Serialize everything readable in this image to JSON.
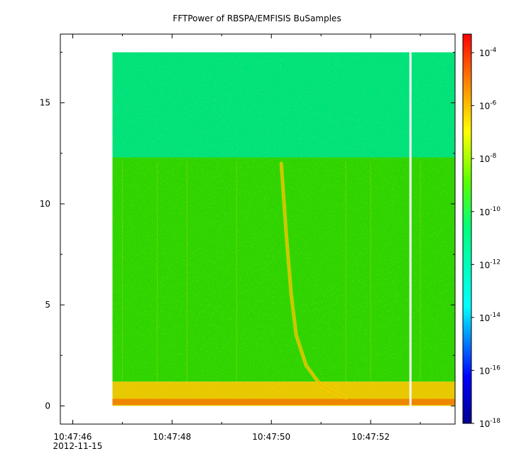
{
  "chart_data": {
    "type": "heatmap",
    "title": "FFTPower of RBSPA/EMFISIS  BuSamples",
    "xlabel": "",
    "ylabel": "",
    "x_ticks": [
      {
        "major": "10:47:46",
        "minor": "2012-11-15",
        "t": 0
      },
      {
        "major": "10:47:48",
        "minor": "",
        "t": 2
      },
      {
        "major": "10:47:50",
        "minor": "",
        "t": 4
      },
      {
        "major": "10:47:52",
        "minor": "",
        "t": 6
      }
    ],
    "x_range_seconds": [
      -0.25,
      7.7
    ],
    "y_ticks": [
      0,
      5,
      10,
      15
    ],
    "ylim": [
      -0.9,
      18.4
    ],
    "data_extent": {
      "t_start": 0.8,
      "t_end": 7.7,
      "y_min": 0,
      "y_max": 17.5
    },
    "data_gap": {
      "t_start": 6.78,
      "t_end": 6.82
    },
    "bands": [
      {
        "y_from": 12.3,
        "y_to": 17.5,
        "level": "-11"
      },
      {
        "y_from": 1.2,
        "y_to": 12.3,
        "level": "-10"
      },
      {
        "y_from": 0.0,
        "y_to": 1.2,
        "level": "-8"
      }
    ],
    "chorus_feature": {
      "description_points": [
        {
          "t": 4.2,
          "y": 12.0
        },
        {
          "t": 4.3,
          "y": 8.5
        },
        {
          "t": 4.4,
          "y": 5.5
        },
        {
          "t": 4.5,
          "y": 3.5
        },
        {
          "t": 4.7,
          "y": 2.0
        },
        {
          "t": 5.0,
          "y": 1.0
        },
        {
          "t": 5.5,
          "y": 0.4
        }
      ]
    },
    "colorbar": {
      "scale": "log",
      "range": [
        -18,
        -3.3
      ],
      "ticks": [
        {
          "base": "10",
          "exp": "-4",
          "v": -4
        },
        {
          "base": "10",
          "exp": "-6",
          "v": -6
        },
        {
          "base": "10",
          "exp": "-8",
          "v": -8
        },
        {
          "base": "10",
          "exp": "-10",
          "v": -10
        },
        {
          "base": "10",
          "exp": "-12",
          "v": -12
        },
        {
          "base": "10",
          "exp": "-14",
          "v": -14
        },
        {
          "base": "10",
          "exp": "-16",
          "v": -16
        },
        {
          "base": "10",
          "exp": "-18",
          "v": -18
        }
      ]
    },
    "colors": {
      "band_low": "#00e27a",
      "band_mid": "#2fd400",
      "band_base": "#e8c800",
      "base_line": "#f07a00",
      "feature": "#f2d000"
    }
  }
}
